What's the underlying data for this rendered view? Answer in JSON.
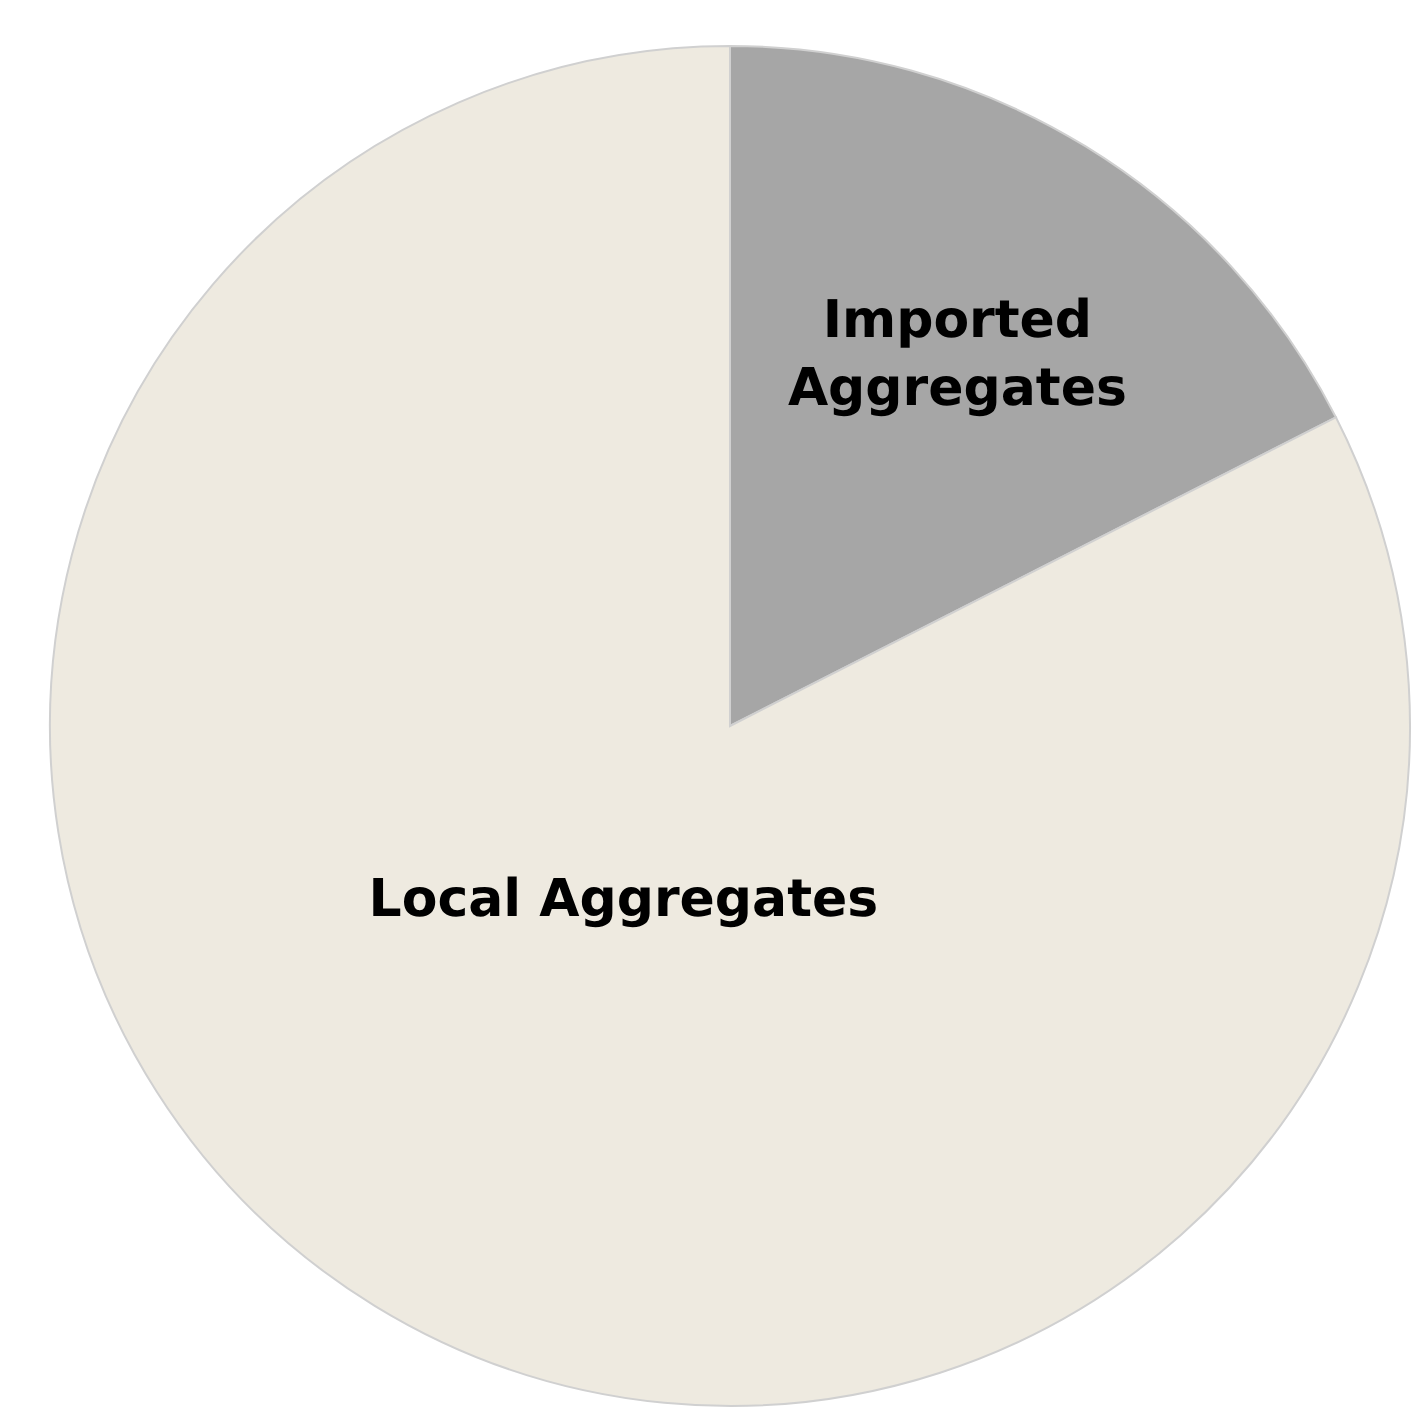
{
  "chart_data": {
    "type": "pie",
    "categories": [
      "Imported Aggregates",
      "Local Aggregates"
    ],
    "values": [
      17.5,
      82.5
    ],
    "colors": [
      "#a6a6a6",
      "#eeeae0"
    ]
  }
}
